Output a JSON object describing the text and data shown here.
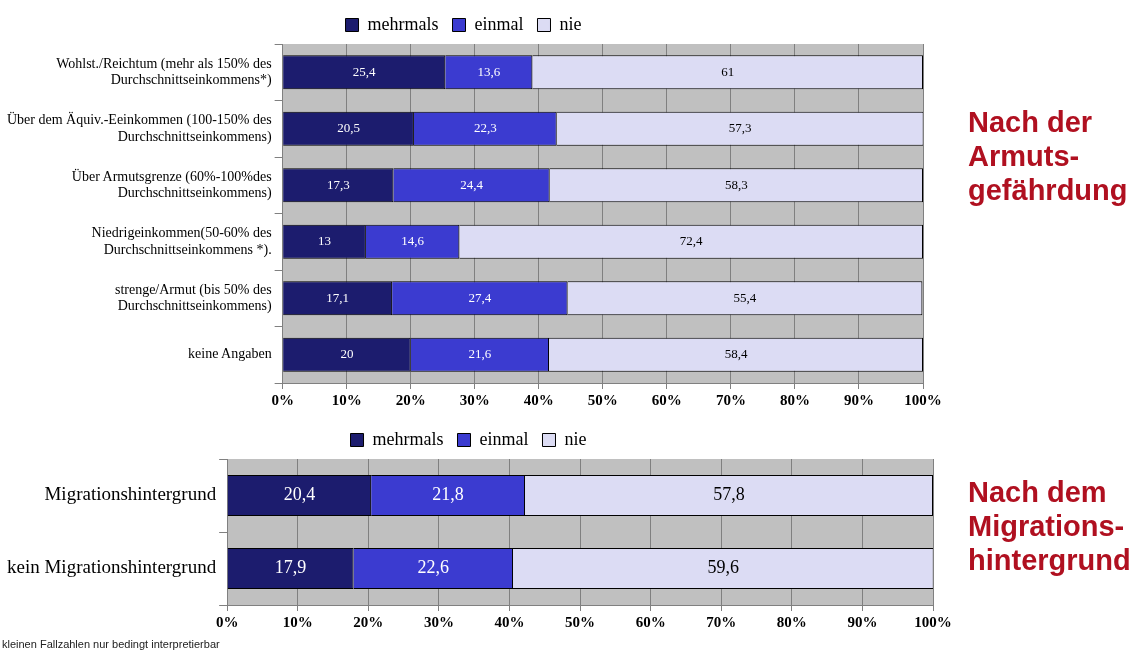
{
  "chart_data": [
    {
      "type": "bar",
      "orientation": "horizontal",
      "stacked": true,
      "legend": "top",
      "grid": "x",
      "categories": [
        "Wohlst./Reichtum (mehr als 150% des Durchschnittseinkommens*)",
        "Über dem Äquiv.-Eeinkommen (100-150% des Durchschnittseinkommens)",
        "Über Armutsgrenze (60%-100%des Durchschnittseinkommens)",
        "Niedrigeinkommen(50-60% des Durchschnittseinkommens *).",
        "strenge/Armut (bis 50% des Durchschnittseinkommens)",
        "keine Angaben"
      ],
      "series": [
        {
          "name": "mehrmals",
          "color": "#1c1c6e",
          "values": [
            25.4,
            20.5,
            17.3,
            13,
            17.1,
            20
          ],
          "value_labels": [
            "25,4",
            "20,5",
            "17,3",
            "13",
            "17,1",
            "20"
          ]
        },
        {
          "name": "einmal",
          "color": "#3b3bd0",
          "values": [
            13.6,
            22.3,
            24.4,
            14.6,
            27.4,
            21.6
          ],
          "value_labels": [
            "13,6",
            "22,3",
            "24,4",
            "14,6",
            "27,4",
            "21,6"
          ]
        },
        {
          "name": "nie",
          "color": "#dcdcf4",
          "values": [
            61,
            57.3,
            58.3,
            72.4,
            55.4,
            58.4
          ],
          "value_labels": [
            "61",
            "57,3",
            "58,3",
            "72,4",
            "55,4",
            "58,4"
          ]
        }
      ],
      "xlim": [
        0,
        100
      ],
      "xticks": [
        {
          "value": 0,
          "label": "0%"
        },
        {
          "value": 10,
          "label": "10%"
        },
        {
          "value": 20,
          "label": "20%"
        },
        {
          "value": 30,
          "label": "30%"
        },
        {
          "value": 40,
          "label": "40%"
        },
        {
          "value": 50,
          "label": "50%"
        },
        {
          "value": 60,
          "label": "60%"
        },
        {
          "value": 70,
          "label": "70%"
        },
        {
          "value": 80,
          "label": "80%"
        },
        {
          "value": 90,
          "label": "90%"
        },
        {
          "value": 100,
          "label": "100%"
        }
      ],
      "annotations": [
        "Nach der Armuts-gefährdung"
      ]
    },
    {
      "type": "bar",
      "orientation": "horizontal",
      "stacked": true,
      "legend": "top",
      "grid": "x",
      "categories": [
        "Migrationshintergrund",
        "kein Migrationshintergrund"
      ],
      "series": [
        {
          "name": "mehrmals",
          "color": "#1c1c6e",
          "values": [
            20.4,
            17.9
          ],
          "value_labels": [
            "20,4",
            "17,9"
          ]
        },
        {
          "name": "einmal",
          "color": "#3b3bd0",
          "values": [
            21.8,
            22.6
          ],
          "value_labels": [
            "21,8",
            "22,6"
          ]
        },
        {
          "name": "nie",
          "color": "#dcdcf4",
          "values": [
            57.8,
            59.6
          ],
          "value_labels": [
            "57,8",
            "59,6"
          ]
        }
      ],
      "xlim": [
        0,
        100
      ],
      "xticks": [
        {
          "value": 0,
          "label": "0%"
        },
        {
          "value": 10,
          "label": "10%"
        },
        {
          "value": 20,
          "label": "20%"
        },
        {
          "value": 30,
          "label": "30%"
        },
        {
          "value": 40,
          "label": "40%"
        },
        {
          "value": 50,
          "label": "50%"
        },
        {
          "value": 60,
          "label": "60%"
        },
        {
          "value": 70,
          "label": "70%"
        },
        {
          "value": 80,
          "label": "80%"
        },
        {
          "value": 90,
          "label": "90%"
        },
        {
          "value": 100,
          "label": "100%"
        }
      ],
      "annotations": [
        "Nach dem Migrations-hintergrund",
        "kleinen Fallzahlen nur bedingt interpretierbar"
      ]
    }
  ]
}
